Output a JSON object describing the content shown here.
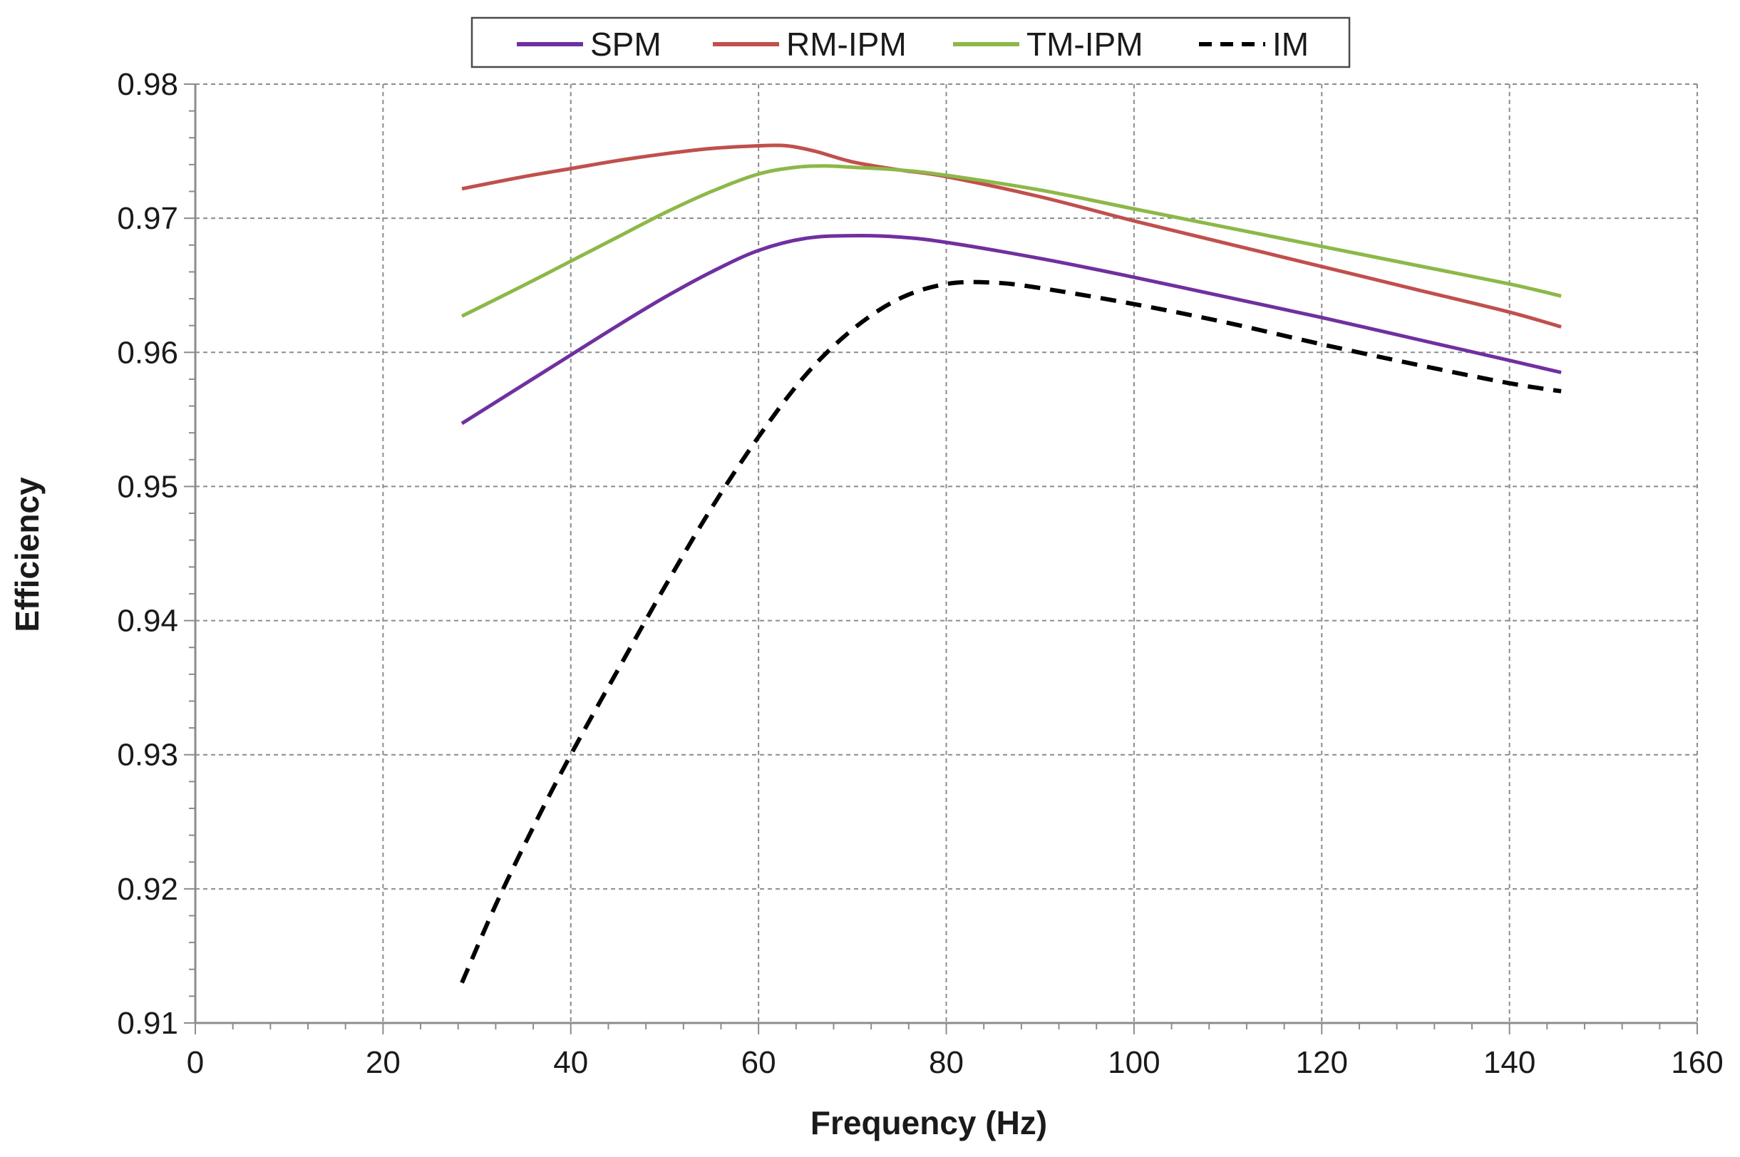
{
  "chart_data": {
    "type": "line",
    "title": "",
    "xlabel": "Frequency (Hz)",
    "ylabel": "Efficiency",
    "xlim": [
      0,
      160
    ],
    "ylim": [
      0.91,
      0.98
    ],
    "x_ticks": [
      "0",
      "20",
      "40",
      "60",
      "80",
      "100",
      "120",
      "140",
      "160"
    ],
    "y_ticks": [
      "0.91",
      "0.92",
      "0.93",
      "0.94",
      "0.95",
      "0.96",
      "0.97",
      "0.98"
    ],
    "grid": true,
    "legend_position": "top",
    "series": [
      {
        "name": "SPM",
        "color": "#7030A0",
        "dashed": false,
        "x": [
          28.4,
          35,
          40,
          45,
          50,
          55,
          60,
          65,
          70,
          75,
          80,
          90,
          100,
          110,
          120,
          130,
          140,
          145.5
        ],
        "y": [
          0.9547,
          0.9576,
          0.9598,
          0.962,
          0.9641,
          0.966,
          0.9676,
          0.9685,
          0.9687,
          0.9686,
          0.9682,
          0.967,
          0.9656,
          0.9641,
          0.9626,
          0.961,
          0.9594,
          0.9585
        ]
      },
      {
        "name": "RM-IPM",
        "color": "#C0504D",
        "dashed": false,
        "x": [
          28.4,
          35,
          40,
          45,
          50,
          55,
          60,
          63,
          66,
          70,
          75,
          80,
          90,
          100,
          110,
          120,
          130,
          140,
          145.5
        ],
        "y": [
          0.9722,
          0.9731,
          0.9737,
          0.9743,
          0.9748,
          0.9752,
          0.9754,
          0.9754,
          0.975,
          0.9742,
          0.9736,
          0.9731,
          0.9716,
          0.9698,
          0.9681,
          0.9664,
          0.9647,
          0.963,
          0.9619
        ]
      },
      {
        "name": "TM-IPM",
        "color": "#8DB848",
        "dashed": false,
        "x": [
          28.4,
          35,
          40,
          45,
          50,
          55,
          60,
          64,
          67,
          70,
          75,
          80,
          90,
          100,
          110,
          120,
          130,
          140,
          145.5
        ],
        "y": [
          0.9627,
          0.965,
          0.9668,
          0.9686,
          0.9704,
          0.972,
          0.9733,
          0.9738,
          0.9739,
          0.9738,
          0.9736,
          0.9732,
          0.9721,
          0.9707,
          0.9693,
          0.9679,
          0.9665,
          0.9651,
          0.9642
        ]
      },
      {
        "name": "IM",
        "color": "#000000",
        "dashed": true,
        "x": [
          28.4,
          32,
          36,
          40,
          45,
          50,
          55,
          60,
          65,
          70,
          75,
          80,
          85,
          90,
          100,
          110,
          120,
          130,
          140,
          145.5
        ],
        "y": [
          0.913,
          0.9188,
          0.9246,
          0.93,
          0.9363,
          0.9425,
          0.9484,
          0.9537,
          0.9583,
          0.9617,
          0.964,
          0.9651,
          0.9652,
          0.9648,
          0.9636,
          0.9622,
          0.9606,
          0.9591,
          0.9577,
          0.9571
        ]
      }
    ]
  }
}
